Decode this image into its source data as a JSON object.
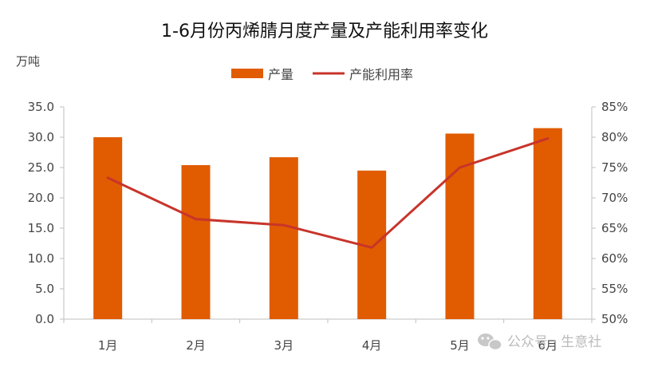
{
  "chart_data": {
    "type": "bar",
    "title": "1-6月份丙烯腈月度产量及产能利用率变化",
    "left_unit": "万吨",
    "categories": [
      "1月",
      "2月",
      "3月",
      "4月",
      "5月",
      "6月"
    ],
    "series": [
      {
        "name": "产量",
        "type": "bar",
        "axis": "left",
        "values": [
          30.0,
          25.4,
          26.7,
          24.5,
          30.6,
          31.5
        ]
      },
      {
        "name": "产能利用率",
        "type": "line",
        "axis": "right",
        "values": [
          73.3,
          66.5,
          65.5,
          61.8,
          75.0,
          79.8
        ]
      }
    ],
    "y_left": {
      "min": 0,
      "max": 35,
      "step": 5,
      "ticks": [
        "0.0",
        "5.0",
        "10.0",
        "15.0",
        "20.0",
        "25.0",
        "30.0",
        "35.0"
      ]
    },
    "y_right": {
      "min": 50,
      "max": 85,
      "step": 5,
      "ticks": [
        "50%",
        "55%",
        "60%",
        "65%",
        "70%",
        "75%",
        "80%",
        "85%"
      ]
    },
    "legend_position": "top-center",
    "grid": false
  },
  "colors": {
    "bar": "#e15b00",
    "line": "#c8342a",
    "axis": "#bfbfbf"
  },
  "watermark": {
    "text": "公众号 · 生意社",
    "icon": "wechat-icon"
  }
}
